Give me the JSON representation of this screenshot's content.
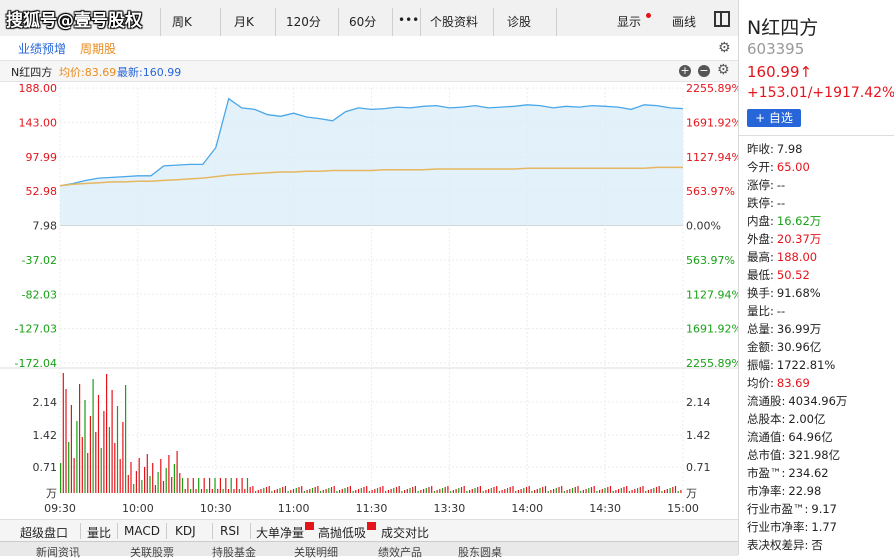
{
  "watermark": "搜狐号@壹号股权",
  "toolbar": {
    "items": [
      "周K",
      "月K",
      "120分",
      "60分",
      "•••",
      "个股资料",
      "诊股",
      "显示",
      "画线"
    ]
  },
  "subtabs": [
    "业绩预增",
    "周期股"
  ],
  "header": {
    "name": "N红四方",
    "avg_label": "均价:83.69",
    "latest_label": "最新:160.99"
  },
  "price_axis": {
    "left": [
      "188.00",
      "143.00",
      "97.99",
      "52.98",
      "7.98",
      "-37.02",
      "-82.03",
      "-127.03",
      "-172.04"
    ],
    "right": [
      "2255.89%",
      "1691.92%",
      "1127.94%",
      "563.97%",
      "0.00%",
      "563.97%",
      "1127.94%",
      "1691.92%",
      "2255.89%"
    ]
  },
  "volume_axis": {
    "left": [
      "2.14",
      "1.42",
      "0.71",
      "万"
    ],
    "right": [
      "2.14",
      "1.42",
      "0.71",
      "万"
    ]
  },
  "time_axis": [
    "09:30",
    "10:00",
    "10:30",
    "11:00",
    "11:30",
    "13:30",
    "14:00",
    "14:30",
    "15:00"
  ],
  "indicators": [
    "超级盘口",
    "量比",
    "MACD",
    "KDJ",
    "RSI",
    "大单净量",
    "高抛低吸",
    "成交对比"
  ],
  "bottom_tabs": [
    "新闻资讯",
    "关联股票",
    "持股基金",
    "关联明细",
    "绩效产品",
    "股东圆桌"
  ],
  "panel": {
    "name": "N红四方",
    "code": "603395",
    "price": "160.99↑",
    "change": "+153.01/+1917.42%",
    "add_button": "+ 自选",
    "stats": [
      {
        "label": "昨收:",
        "value": "7.98",
        "color": "dark"
      },
      {
        "label": "今开:",
        "value": "65.00",
        "color": "red"
      },
      {
        "label": "涨停:",
        "value": "--",
        "color": "dark"
      },
      {
        "label": "跌停:",
        "value": "--",
        "color": "dark"
      },
      {
        "label": "内盘:",
        "value": "16.62万",
        "color": "green"
      },
      {
        "label": "外盘:",
        "value": "20.37万",
        "color": "red"
      },
      {
        "label": "最高:",
        "value": "188.00",
        "color": "red"
      },
      {
        "label": "最低:",
        "value": "50.52",
        "color": "red"
      },
      {
        "label": "换手:",
        "value": "91.68%",
        "color": "dark"
      },
      {
        "label": "量比:",
        "value": "--",
        "color": "dark"
      },
      {
        "label": "总量:",
        "value": "36.99万",
        "color": "dark"
      },
      {
        "label": "金额:",
        "value": "30.96亿",
        "color": "dark"
      },
      {
        "label": "振幅:",
        "value": "1722.81%",
        "color": "dark"
      },
      {
        "label": "均价:",
        "value": "83.69",
        "color": "red"
      },
      {
        "label": "流通股:",
        "value": "4034.96万",
        "color": "dark"
      },
      {
        "label": "总股本:",
        "value": "2.00亿",
        "color": "dark"
      },
      {
        "label": "流通值:",
        "value": "64.96亿",
        "color": "dark"
      },
      {
        "label": "总市值:",
        "value": "321.98亿",
        "color": "dark"
      },
      {
        "label": "市盈™:",
        "value": "234.62",
        "color": "dark"
      },
      {
        "label": "市净率:",
        "value": "22.98",
        "color": "dark"
      },
      {
        "label": "行业市盈™:",
        "value": "9.17",
        "color": "dark"
      },
      {
        "label": "行业市净率:",
        "value": "1.77",
        "color": "dark"
      },
      {
        "label": "表决权差异:",
        "value": "否",
        "color": "dark"
      }
    ]
  },
  "colors": {
    "up": "#e4141b",
    "down": "#18a016",
    "price_line": "#4aa7e8",
    "avg_line": "#e6b760",
    "accent": "#2666d9"
  },
  "chart_data": {
    "type": "line",
    "title": "",
    "x": [
      "09:30",
      "09:35",
      "09:40",
      "09:45",
      "09:50",
      "09:55",
      "10:00",
      "10:05",
      "10:10",
      "10:15",
      "10:20",
      "10:25",
      "10:30",
      "10:35",
      "10:40",
      "10:45",
      "10:50",
      "10:55",
      "11:00",
      "11:05",
      "11:10",
      "11:15",
      "11:20",
      "11:25",
      "11:30",
      "13:05",
      "13:10",
      "13:15",
      "13:20",
      "13:25",
      "13:30",
      "13:35",
      "13:40",
      "13:45",
      "13:50",
      "13:55",
      "14:00",
      "14:05",
      "14:10",
      "14:15",
      "14:20",
      "14:25",
      "14:30",
      "14:35",
      "14:40",
      "14:45",
      "14:50",
      "14:55",
      "15:00"
    ],
    "series": [
      {
        "values": [
          60,
          63,
          67,
          70,
          71,
          72,
          73,
          73,
          86,
          87,
          88,
          88,
          110,
          174,
          162,
          160,
          153,
          151,
          155,
          150,
          148,
          145,
          157,
          162,
          160,
          161,
          163,
          162,
          164,
          165,
          162,
          163,
          165,
          162,
          163,
          164,
          166,
          165,
          162,
          164,
          163,
          165,
          164,
          163,
          160,
          166,
          165,
          162,
          161
        ]
      },
      {
        "values": [
          60,
          62,
          63,
          64,
          65,
          65,
          66,
          66,
          67,
          68,
          69,
          70,
          72,
          74,
          75,
          76,
          77,
          78,
          78,
          79,
          79,
          80,
          80,
          80,
          80,
          81,
          81,
          81,
          81,
          82,
          82,
          82,
          82,
          82,
          82,
          82,
          83,
          83,
          83,
          83,
          83,
          83,
          83,
          83,
          83,
          83,
          84,
          84,
          84
        ]
      }
    ],
    "ylim": [
      -172.04,
      188.0
    ]
  }
}
